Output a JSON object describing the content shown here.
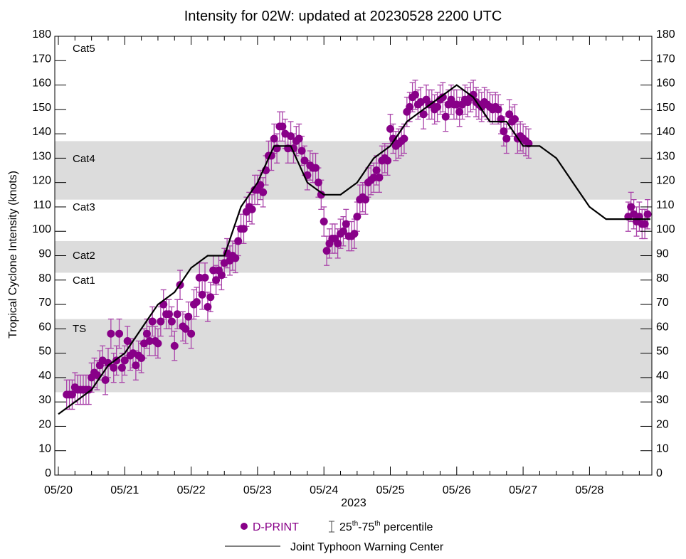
{
  "chart_data": {
    "type": "scatter",
    "title": "Intensity for 02W: updated at 20230528 2200 UTC",
    "ylabel": "Tropical Cyclone Intensity (knots)",
    "xlabel": "2023",
    "ylim": [
      0,
      180
    ],
    "yticks": [
      0,
      10,
      20,
      30,
      40,
      50,
      60,
      70,
      80,
      90,
      100,
      110,
      120,
      130,
      140,
      150,
      160,
      170,
      180
    ],
    "xlim": [
      "2023-05-20 00:00",
      "2023-05-28 22:00"
    ],
    "xticks": [
      "05/20",
      "05/21",
      "05/22",
      "05/23",
      "05/24",
      "05/25",
      "05/26",
      "05/27",
      "05/28"
    ],
    "grid": false,
    "category_bands": [
      {
        "label": "TS",
        "range": [
          34,
          64
        ],
        "shaded": true
      },
      {
        "label": "Cat1",
        "range": [
          64,
          83
        ],
        "shaded": false
      },
      {
        "label": "Cat2",
        "range": [
          83,
          96
        ],
        "shaded": true
      },
      {
        "label": "Cat3",
        "range": [
          96,
          113
        ],
        "shaded": false
      },
      {
        "label": "Cat4",
        "range": [
          113,
          137
        ],
        "shaded": true
      },
      {
        "label": "Cat5",
        "range": [
          137,
          180
        ],
        "shaded": false
      }
    ],
    "series": [
      {
        "name": "D-PRINT",
        "kind": "points-with-iqr",
        "color": "#880088",
        "errcolor": "#aa44aa",
        "iqr_halfwidth_knots": 6,
        "segments": [
          {
            "start": "2023-05-20 03:00",
            "interval_hours": 1,
            "values": [
              33,
              33,
              33,
              36,
              35,
              35,
              35,
              35,
              35,
              40,
              42,
              41,
              45,
              47,
              39,
              46,
              58,
              44,
              47,
              58,
              44,
              47,
              55,
              49,
              50,
              45,
              49,
              48,
              54,
              58,
              55,
              63,
              55,
              54,
              63,
              70,
              66,
              66,
              63,
              53,
              66,
              78,
              61,
              60,
              65,
              58,
              70,
              71,
              81,
              74,
              81,
              69,
              73,
              84,
              80,
              84,
              82,
              87,
              91,
              88,
              90,
              89,
              96,
              101,
              101,
              108,
              110,
              109,
              117,
              117,
              119,
              116,
              125,
              131,
              131,
              138,
              134,
              143,
              143,
              140,
              134,
              139,
              134,
              137,
              138,
              133,
              129,
              123,
              127,
              126,
              126,
              120,
              115,
              104,
              92,
              95,
              97,
              97,
              95,
              99,
              100,
              103,
              98,
              98,
              99,
              106,
              113,
              114,
              113,
              120,
              121,
              122,
              125,
              122,
              129,
              130,
              129,
              142,
              138,
              135,
              136,
              137,
              138,
              149,
              151,
              155,
              156,
              152,
              153,
              148,
              154,
              152,
              152,
              150,
              151,
              154,
              155,
              147,
              152,
              154,
              152,
              152,
              149,
              152,
              154,
              153,
              155,
              156,
              153,
              152,
              151,
              153,
              152,
              151,
              150,
              151,
              150,
              146,
              141,
              138,
              148,
              145,
              146,
              138,
              139,
              138,
              137,
              136
            ]
          },
          {
            "start": "2023-05-28 14:00",
            "interval_hours": 1,
            "values": [
              106,
              110,
              107,
              104,
              106,
              103,
              103,
              107
            ]
          }
        ]
      },
      {
        "name": "Joint Typhoon Warning Center",
        "kind": "line",
        "color": "#000000",
        "x": [
          "2023-05-20 00:00",
          "2023-05-20 06:00",
          "2023-05-20 12:00",
          "2023-05-20 18:00",
          "2023-05-21 00:00",
          "2023-05-21 06:00",
          "2023-05-21 12:00",
          "2023-05-21 18:00",
          "2023-05-22 00:00",
          "2023-05-22 06:00",
          "2023-05-22 12:00",
          "2023-05-22 18:00",
          "2023-05-23 00:00",
          "2023-05-23 06:00",
          "2023-05-23 12:00",
          "2023-05-23 18:00",
          "2023-05-24 00:00",
          "2023-05-24 06:00",
          "2023-05-24 12:00",
          "2023-05-24 18:00",
          "2023-05-25 00:00",
          "2023-05-25 06:00",
          "2023-05-25 12:00",
          "2023-05-25 18:00",
          "2023-05-26 00:00",
          "2023-05-26 06:00",
          "2023-05-26 12:00",
          "2023-05-26 18:00",
          "2023-05-27 00:00",
          "2023-05-27 06:00",
          "2023-05-27 12:00",
          "2023-05-27 18:00",
          "2023-05-28 00:00",
          "2023-05-28 06:00",
          "2023-05-28 12:00",
          "2023-05-28 18:00",
          "2023-05-28 22:00"
        ],
        "values": [
          25,
          30,
          35,
          45,
          50,
          60,
          70,
          75,
          85,
          90,
          90,
          110,
          120,
          135,
          135,
          120,
          115,
          115,
          120,
          130,
          135,
          145,
          150,
          155,
          160,
          155,
          145,
          145,
          135,
          135,
          130,
          120,
          110,
          105,
          105,
          105,
          105
        ]
      }
    ],
    "legend": {
      "placement": "bottom",
      "dprint_label": "D-PRINT",
      "iqr_prefix_a": "25",
      "iqr_sup_a": "th",
      "iqr_dash": "-75",
      "iqr_sup_b": "th",
      "iqr_suffix": " percentile",
      "jtwc_label": "Joint Typhoon Warning Center"
    }
  }
}
